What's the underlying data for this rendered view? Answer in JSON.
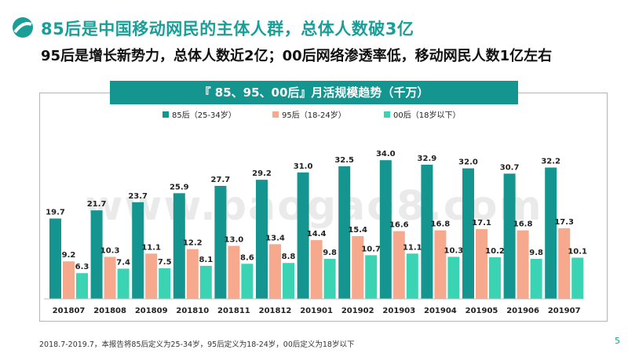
{
  "header": {
    "title": "85后是中国移动网民的主体人群，总体人数破3亿",
    "subtitle": "95后是增长新势力，总体人数近2亿；00后网络渗透率低，移动网民人数1亿左右"
  },
  "footnote": "2018.7-2019.7，本报告将85后定义为25-34岁，95后定义为18-24岁，00后定义为18岁以下",
  "page_number": "5",
  "watermark": "www.baogao8.com",
  "colors": {
    "brand": "#1a9e98",
    "series_85": "#14958f",
    "series_95": "#f6a98c",
    "series_00": "#3ad3b4"
  },
  "chart_data": {
    "type": "bar",
    "title": "『 85、95、00后』月活规模趋势（千万）",
    "xlabel": "",
    "ylabel": "",
    "ylim": [
      0,
      36
    ],
    "grid": false,
    "legend_position": "top",
    "categories": [
      "201807",
      "201808",
      "201809",
      "201810",
      "201811",
      "201812",
      "201901",
      "201902",
      "201903",
      "201904",
      "201905",
      "201906",
      "201907"
    ],
    "series": [
      {
        "name": "85后（25-34岁）",
        "color": "#14958f",
        "values": [
          19.7,
          21.7,
          23.7,
          25.9,
          27.7,
          29.2,
          31.0,
          32.5,
          34.0,
          32.9,
          32.0,
          30.7,
          32.2
        ]
      },
      {
        "name": "95后（18-24岁）",
        "color": "#f6a98c",
        "values": [
          9.2,
          10.3,
          11.1,
          12.2,
          13.0,
          13.4,
          14.4,
          15.4,
          16.6,
          16.8,
          17.1,
          16.8,
          17.3
        ]
      },
      {
        "name": "00后（18岁以下）",
        "color": "#3ad3b4",
        "values": [
          6.3,
          7.4,
          7.5,
          8.1,
          8.6,
          8.8,
          9.8,
          10.7,
          11.1,
          10.3,
          10.2,
          9.8,
          10.1
        ]
      }
    ]
  }
}
